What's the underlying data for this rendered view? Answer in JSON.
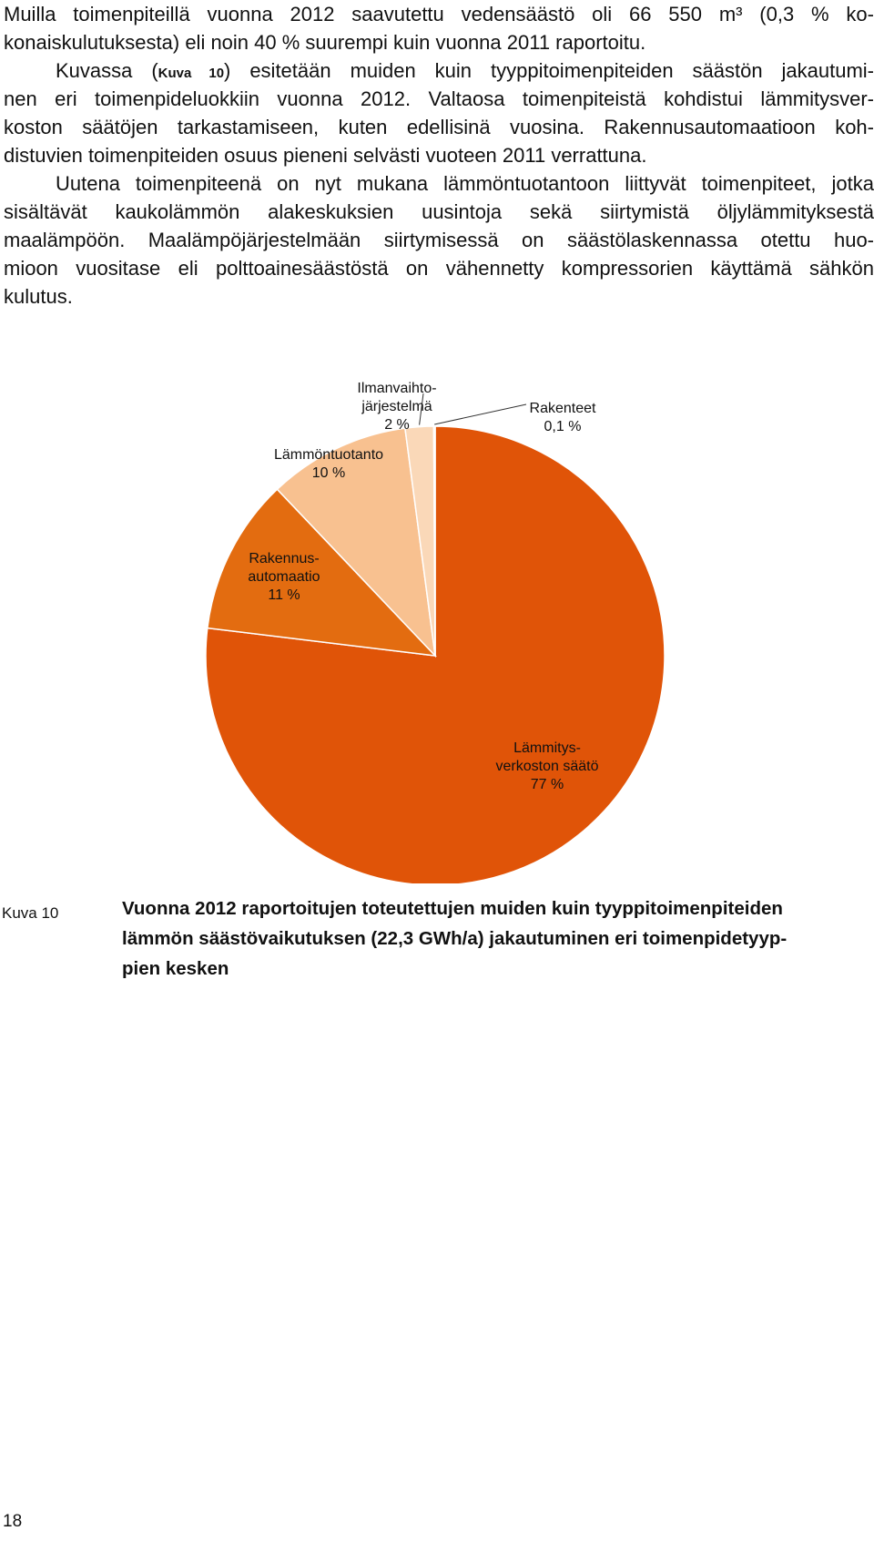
{
  "paragraph1": {
    "lines": [
      "Muilla toimenpiteillä vuonna 2012 saavutettu vedensäästö oli 66 550 m³ (0,3 % ko-",
      "konaiskulutuksesta) eli noin 40 % suurempi kuin vuonna 2011 raportoitu."
    ]
  },
  "paragraph2": {
    "line1_before": "Kuvassa (",
    "line1_ref": "Kuva 10",
    "line1_after": ") esitetään muiden kuin tyyppitoimenpiteiden säästön jakautumi-",
    "lines": [
      "nen eri toimenpideluokkiin vuonna 2012. Valtaosa toimenpiteistä kohdistui lämmitysver-",
      "koston säätöjen tarkastamiseen, kuten edellisinä vuosina. Rakennusautomaatioon koh-",
      "distuvien toimenpiteiden osuus pieneni selvästi vuoteen 2011 verrattuna."
    ]
  },
  "paragraph3": {
    "lines": [
      "Uutena toimenpiteenä on nyt mukana lämmöntuotantoon liittyvät toimenpiteet, jotka",
      "sisältävät kaukolämmön alakeskuksien uusintoja sekä siirtymistä öljylämmityksestä",
      "maalämpöön. Maalämpöjärjestelmään siirtymisessä on säästölaskennassa otettu huo-",
      "mioon vuositase eli polttoainesäästöstä on vähennetty kompressorien käyttämä sähkön",
      "kulutus."
    ]
  },
  "chart_data": {
    "type": "pie",
    "title": "",
    "slices": [
      {
        "label_lines": [
          "Lämmitys-",
          "verkoston säätö",
          "77 %"
        ],
        "value": 77,
        "color": "#E05408"
      },
      {
        "label_lines": [
          "Rakennus-",
          "automaatio",
          "11 %"
        ],
        "value": 11,
        "color": "#E36C10"
      },
      {
        "label_lines": [
          "Lämmöntuotanto",
          "10 %"
        ],
        "value": 10,
        "color": "#F8C190"
      },
      {
        "label_lines": [
          "Ilmanvaihto-",
          "järjestelmä",
          "2 %"
        ],
        "value": 2,
        "color": "#FAD8B8"
      },
      {
        "label_lines": [
          "Rakenteet",
          "0,1 %"
        ],
        "value": 0.1,
        "color": "#F4E6D6"
      }
    ]
  },
  "caption": {
    "number": "Kuva 10",
    "lines": [
      "Vuonna 2012 raportoitujen toteutettujen muiden kuin tyyppitoimenpiteiden",
      "lämmön säästövaikutuksen (22,3 GWh/a) jakautuminen eri toimenpidetyyp-",
      "pien kesken"
    ]
  },
  "page_number": "18"
}
